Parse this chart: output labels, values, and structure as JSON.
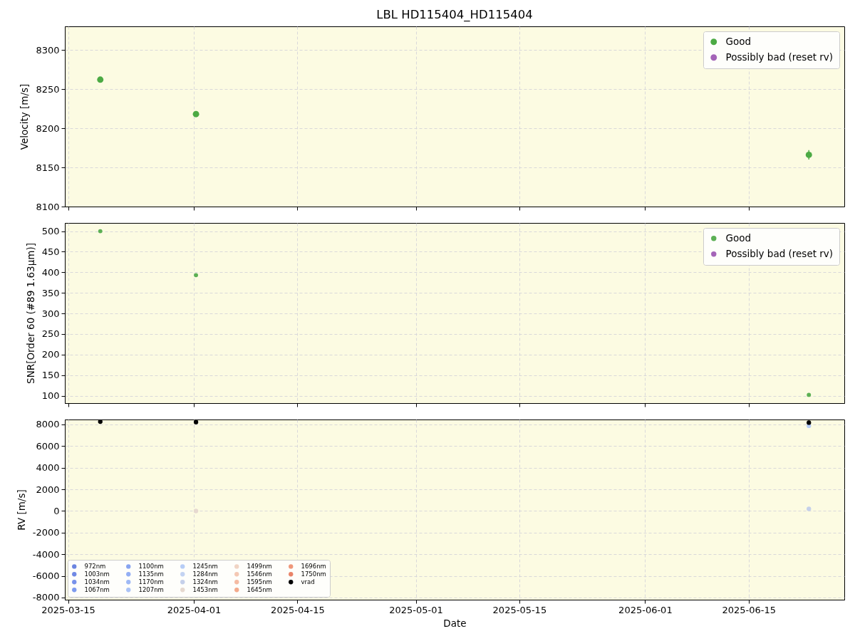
{
  "chart_data": [
    {
      "type": "scatter",
      "title": "LBL HD115404_HD115404",
      "ylabel": "Velocity [m/s]",
      "x": [
        "2025-03-19T08:30",
        "2025-04-01T07:00",
        "2025-06-23T03:20"
      ],
      "series": [
        {
          "name": "Good",
          "color": "#4caa44",
          "values": [
            8262,
            8218,
            8166
          ],
          "errors": [
            null,
            null,
            6
          ]
        },
        {
          "name": "Possibly bad (reset rv)",
          "color": "#a464b8",
          "values": [
            null,
            null,
            null
          ]
        }
      ],
      "xlim": [
        "2025-03-14T13:30",
        "2025-06-27T22:20"
      ],
      "xticks": [
        "2025-03-15",
        "2025-04-01",
        "2025-04-15",
        "2025-05-01",
        "2025-05-15",
        "2025-06-01",
        "2025-06-15"
      ],
      "ylim": [
        8100,
        8330
      ],
      "yticks": [
        8100,
        8150,
        8200,
        8250,
        8300
      ],
      "grid": true,
      "legend": "top right",
      "tick_labels": "y",
      "marker": "circle"
    },
    {
      "type": "scatter",
      "ylabel": "SNR[Order 60 (#89 1.63μm)]",
      "x": [
        "2025-03-19T08:30",
        "2025-04-01T07:00",
        "2025-06-23T03:20"
      ],
      "series": [
        {
          "name": "Good",
          "color": "#5cb054",
          "values": [
            500,
            393,
            102
          ]
        },
        {
          "name": "Possibly bad (reset rv)",
          "color": "#a464b8",
          "values": [
            null,
            null,
            null
          ]
        }
      ],
      "xlim": [
        "2025-03-14T13:30",
        "2025-06-27T22:20"
      ],
      "xticks": [
        "2025-03-15",
        "2025-04-01",
        "2025-04-15",
        "2025-05-01",
        "2025-05-15",
        "2025-06-01",
        "2025-06-15"
      ],
      "ylim": [
        82,
        520
      ],
      "yticks": [
        100,
        150,
        200,
        250,
        300,
        350,
        400,
        450,
        500
      ],
      "grid": true,
      "legend": "top right",
      "tick_labels": "y",
      "marker": "circle"
    },
    {
      "type": "scatter",
      "xlabel": "Date",
      "ylabel": "RV [m/s]",
      "x": [
        "2025-03-19T08:30",
        "2025-04-01T07:00",
        "2025-06-23T03:20"
      ],
      "series": [
        {
          "name": "972nm",
          "color": "#6b84e0",
          "values": [
            null,
            null,
            null
          ]
        },
        {
          "name": "1003nm",
          "color": "#7089e4",
          "values": [
            null,
            null,
            null
          ]
        },
        {
          "name": "1034nm",
          "color": "#7892ea",
          "values": [
            null,
            null,
            null
          ]
        },
        {
          "name": "1067nm",
          "color": "#7e9bee",
          "values": [
            null,
            null,
            null
          ]
        },
        {
          "name": "1100nm",
          "color": "#88a4f0",
          "values": [
            null,
            null,
            null
          ]
        },
        {
          "name": "1135nm",
          "color": "#93aef4",
          "values": [
            null,
            null,
            null
          ]
        },
        {
          "name": "1170nm",
          "color": "#9fb9f5",
          "values": [
            null,
            null,
            null
          ]
        },
        {
          "name": "1207nm",
          "color": "#abc3f6",
          "values": [
            null,
            null,
            null
          ]
        },
        {
          "name": "1245nm",
          "color": "#b7cdf6",
          "values": [
            null,
            null,
            7870
          ]
        },
        {
          "name": "1284nm",
          "color": "#c3d3f2",
          "values": [
            null,
            null,
            null
          ]
        },
        {
          "name": "1324nm",
          "color": "#c5d0ea",
          "values": [
            null,
            null,
            200
          ]
        },
        {
          "name": "1453nm",
          "color": "#e6d9d0",
          "values": [
            null,
            0,
            null
          ]
        },
        {
          "name": "1499nm",
          "color": "#f0d4c4",
          "values": [
            null,
            null,
            null
          ]
        },
        {
          "name": "1546nm",
          "color": "#f4c8b4",
          "values": [
            null,
            null,
            null
          ]
        },
        {
          "name": "1595nm",
          "color": "#f5bba2",
          "values": [
            null,
            null,
            null
          ]
        },
        {
          "name": "1645nm",
          "color": "#f3aa8c",
          "values": [
            null,
            null,
            null
          ]
        },
        {
          "name": "1696nm",
          "color": "#ef977a",
          "values": [
            null,
            null,
            null
          ]
        },
        {
          "name": "1750nm",
          "color": "#e98368",
          "values": [
            null,
            null,
            null
          ]
        },
        {
          "name": "vrad",
          "color": "#000000",
          "values": [
            8260,
            8220,
            8170
          ]
        }
      ],
      "xlim": [
        "2025-03-14T13:30",
        "2025-06-27T22:20"
      ],
      "xticks": [
        "2025-03-15",
        "2025-04-01",
        "2025-04-15",
        "2025-05-01",
        "2025-05-15",
        "2025-06-01",
        "2025-06-15"
      ],
      "ylim": [
        -8200,
        8460
      ],
      "yticks": [
        -8000,
        -6000,
        -4000,
        -2000,
        0,
        2000,
        4000,
        6000,
        8000
      ],
      "grid": true,
      "legend": "bottom left",
      "marker": "circle"
    }
  ]
}
